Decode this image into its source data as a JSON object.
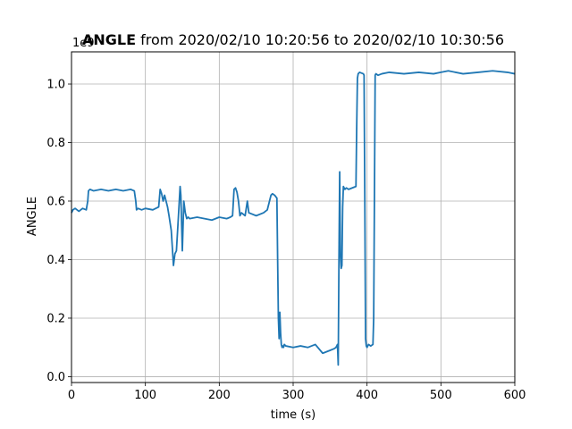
{
  "chart_data": {
    "type": "line",
    "title_bold": "ANGLE",
    "title_rest": " from 2020/02/10 10:20:56 to 2020/02/10 10:30:56",
    "xlabel": "time (s)",
    "ylabel": "ANGLE",
    "offset_text": "1e9",
    "xlim": [
      0,
      600
    ],
    "ylim": [
      -0.02,
      1.11
    ],
    "xticks": [
      0,
      100,
      200,
      300,
      400,
      500,
      600
    ],
    "xtick_labels": [
      "0",
      "100",
      "200",
      "300",
      "400",
      "500",
      "600"
    ],
    "yticks": [
      0.0,
      0.2,
      0.4,
      0.6,
      0.8,
      1.0
    ],
    "ytick_labels": [
      "0.0",
      "0.2",
      "0.4",
      "0.6",
      "0.8",
      "1.0"
    ],
    "grid": true,
    "series_color": "#1f77b4",
    "series": [
      {
        "x": [
          0,
          2,
          5,
          10,
          15,
          20,
          22,
          23,
          25,
          30,
          40,
          50,
          60,
          70,
          80,
          85,
          87,
          88,
          90,
          95,
          100,
          110,
          118,
          120,
          122,
          124,
          126,
          128,
          130,
          132,
          135,
          137,
          138,
          140,
          142,
          145,
          147,
          148,
          150,
          152,
          154,
          156,
          158,
          160,
          170,
          180,
          190,
          200,
          210,
          215,
          218,
          220,
          222,
          224,
          226,
          228,
          230,
          235,
          238,
          240,
          250,
          260,
          265,
          268,
          270,
          272,
          275,
          278,
          279,
          280,
          281,
          282,
          283,
          284,
          285,
          286,
          287,
          288,
          290,
          300,
          310,
          320,
          330,
          340,
          350,
          355,
          358,
          360,
          361,
          362,
          363,
          364,
          365,
          366,
          367,
          368,
          370,
          372,
          375,
          380,
          385,
          386,
          387,
          388,
          390,
          395,
          396,
          397,
          398,
          399,
          400,
          402,
          405,
          408,
          409,
          410,
          411,
          412,
          415,
          420,
          430,
          450,
          470,
          490,
          500,
          510,
          530,
          550,
          570,
          590,
          600
        ],
        "y": [
          0.56,
          0.57,
          0.575,
          0.565,
          0.575,
          0.57,
          0.6,
          0.635,
          0.64,
          0.635,
          0.64,
          0.635,
          0.64,
          0.635,
          0.64,
          0.635,
          0.6,
          0.57,
          0.575,
          0.57,
          0.575,
          0.57,
          0.58,
          0.64,
          0.625,
          0.6,
          0.62,
          0.6,
          0.58,
          0.55,
          0.5,
          0.42,
          0.38,
          0.42,
          0.43,
          0.56,
          0.65,
          0.62,
          0.43,
          0.6,
          0.56,
          0.54,
          0.545,
          0.54,
          0.545,
          0.54,
          0.535,
          0.545,
          0.54,
          0.545,
          0.55,
          0.64,
          0.645,
          0.63,
          0.6,
          0.55,
          0.56,
          0.55,
          0.6,
          0.56,
          0.55,
          0.56,
          0.57,
          0.6,
          0.62,
          0.625,
          0.62,
          0.61,
          0.4,
          0.2,
          0.13,
          0.22,
          0.15,
          0.11,
          0.1,
          0.105,
          0.1,
          0.11,
          0.105,
          0.1,
          0.105,
          0.1,
          0.11,
          0.08,
          0.09,
          0.095,
          0.1,
          0.11,
          0.04,
          0.4,
          0.7,
          0.42,
          0.37,
          0.38,
          0.58,
          0.65,
          0.64,
          0.645,
          0.64,
          0.645,
          0.65,
          0.85,
          1.02,
          1.035,
          1.04,
          1.035,
          1.03,
          0.6,
          0.13,
          0.105,
          0.1,
          0.11,
          0.105,
          0.11,
          0.2,
          0.6,
          1.03,
          1.035,
          1.03,
          1.035,
          1.04,
          1.035,
          1.04,
          1.035,
          1.04,
          1.045,
          1.035,
          1.04,
          1.045,
          1.04,
          1.035
        ]
      }
    ]
  }
}
